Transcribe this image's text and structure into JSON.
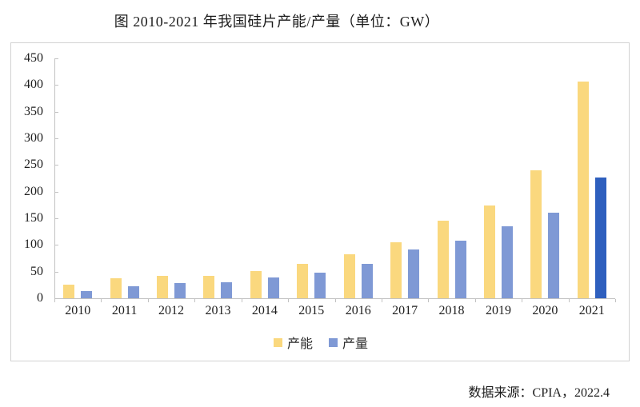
{
  "chart_data": {
    "type": "bar",
    "title": "图 2010-2021 年我国硅片产能/产量（单位：GW）",
    "unit": "GW",
    "categories": [
      "2010",
      "2011",
      "2012",
      "2013",
      "2014",
      "2015",
      "2016",
      "2017",
      "2018",
      "2019",
      "2020",
      "2021"
    ],
    "series": [
      {
        "name": "产能",
        "color": "#FAD87E",
        "values": [
          25,
          37,
          42,
          42,
          51,
          65,
          82,
          105,
          146,
          174,
          240,
          407
        ]
      },
      {
        "name": "产量",
        "color": "#7F99D5",
        "highlight_color": "#2E5FBE",
        "highlight_index": 11,
        "values": [
          13,
          22,
          28,
          30,
          39,
          48,
          65,
          92,
          108,
          135,
          161,
          227
        ]
      }
    ],
    "ylim": [
      0,
      450
    ],
    "yticks": [
      0,
      50,
      100,
      150,
      200,
      250,
      300,
      350,
      400,
      450
    ],
    "grid": false,
    "legend_position": "bottom",
    "axis_color": "#c2c2c2",
    "source_note": "数据来源：CPIA，2022.4"
  }
}
